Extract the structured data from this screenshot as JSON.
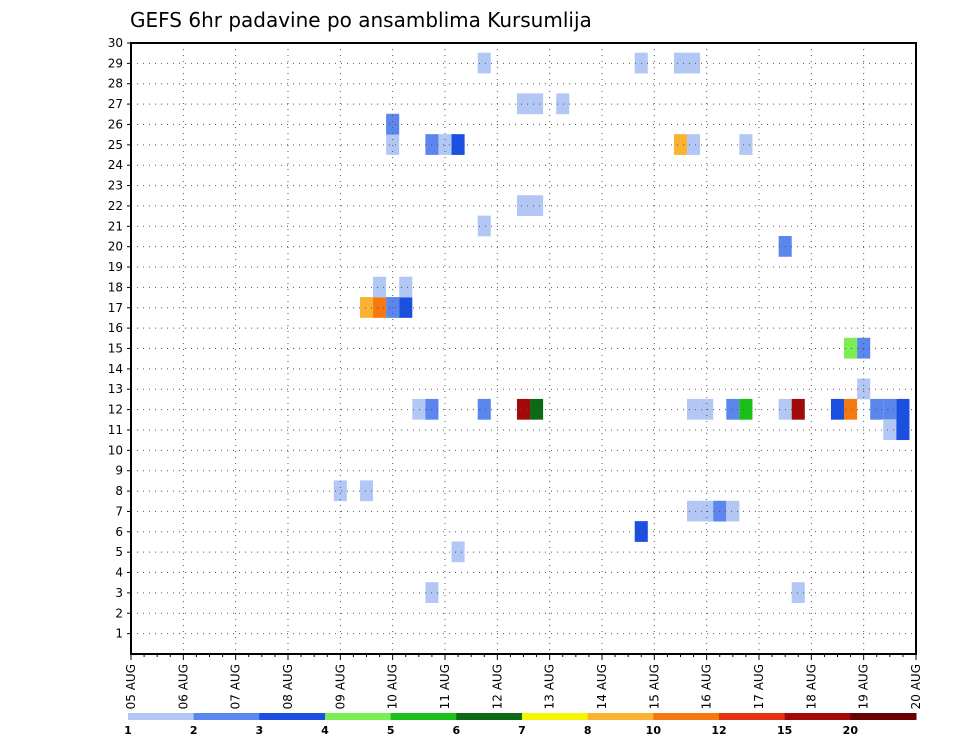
{
  "chart_data": {
    "type": "heatmap",
    "title": "GEFS 6hr padavine po ansamblima Kursumlija",
    "xlabel": "",
    "ylabel": "",
    "x_ticks": [
      "05 AUG",
      "06 AUG",
      "07 AUG",
      "08 AUG",
      "09 AUG",
      "10 AUG",
      "11 AUG",
      "12 AUG",
      "13 AUG",
      "14 AUG",
      "15 AUG",
      "16 AUG",
      "17 AUG",
      "18 AUG",
      "19 AUG",
      "20 AUG"
    ],
    "y_ticks": [
      "1",
      "2",
      "3",
      "4",
      "5",
      "6",
      "7",
      "8",
      "9",
      "10",
      "11",
      "12",
      "13",
      "14",
      "15",
      "16",
      "17",
      "18",
      "19",
      "20",
      "21",
      "22",
      "23",
      "24",
      "25",
      "26",
      "27",
      "28",
      "29",
      "30"
    ],
    "xlim": [
      0,
      15
    ],
    "ylim": [
      0,
      30
    ],
    "grid": true,
    "legend": {
      "position": "bottom",
      "labels": [
        "1",
        "2",
        "3",
        "4",
        "5",
        "6",
        "7",
        "8",
        "10",
        "12",
        "15",
        "20"
      ],
      "colors": [
        "#b3c7f5",
        "#5a86ed",
        "#1a4fe0",
        "#7aee52",
        "#18c018",
        "#0c6a14",
        "#f5f500",
        "#f9b232",
        "#f57810",
        "#e63010",
        "#a20a0a",
        "#6a0000"
      ]
    },
    "cells": [
      {
        "day": 4.0,
        "member": 8,
        "level": 1
      },
      {
        "day": 4.5,
        "member": 8,
        "level": 1
      },
      {
        "day": 4.5,
        "member": 17,
        "level": 8
      },
      {
        "day": 4.75,
        "member": 17,
        "level": 9
      },
      {
        "day": 4.75,
        "member": 18,
        "level": 1
      },
      {
        "day": 5.0,
        "member": 17,
        "level": 2
      },
      {
        "day": 5.25,
        "member": 17,
        "level": 3
      },
      {
        "day": 5.25,
        "member": 18,
        "level": 1
      },
      {
        "day": 5.0,
        "member": 25,
        "level": 1
      },
      {
        "day": 5.0,
        "member": 26,
        "level": 2
      },
      {
        "day": 5.75,
        "member": 3,
        "level": 1
      },
      {
        "day": 5.75,
        "member": 25,
        "level": 2
      },
      {
        "day": 6.0,
        "member": 25,
        "level": 1
      },
      {
        "day": 6.25,
        "member": 25,
        "level": 3
      },
      {
        "day": 6.25,
        "member": 5,
        "level": 1
      },
      {
        "day": 5.5,
        "member": 12,
        "level": 1
      },
      {
        "day": 5.75,
        "member": 12,
        "level": 2
      },
      {
        "day": 6.75,
        "member": 12,
        "level": 2
      },
      {
        "day": 6.75,
        "member": 21,
        "level": 1
      },
      {
        "day": 6.75,
        "member": 29,
        "level": 1
      },
      {
        "day": 7.5,
        "member": 12,
        "level": 11
      },
      {
        "day": 7.75,
        "member": 12,
        "level": 6
      },
      {
        "day": 7.5,
        "member": 22,
        "level": 1
      },
      {
        "day": 7.75,
        "member": 22,
        "level": 1
      },
      {
        "day": 7.5,
        "member": 27,
        "level": 1
      },
      {
        "day": 7.75,
        "member": 27,
        "level": 1
      },
      {
        "day": 8.25,
        "member": 27,
        "level": 1
      },
      {
        "day": 9.75,
        "member": 6,
        "level": 3
      },
      {
        "day": 9.75,
        "member": 29,
        "level": 1
      },
      {
        "day": 10.5,
        "member": 25,
        "level": 8
      },
      {
        "day": 10.75,
        "member": 25,
        "level": 1
      },
      {
        "day": 10.5,
        "member": 29,
        "level": 1
      },
      {
        "day": 10.75,
        "member": 29,
        "level": 1
      },
      {
        "day": 10.75,
        "member": 7,
        "level": 1
      },
      {
        "day": 11.0,
        "member": 7,
        "level": 1
      },
      {
        "day": 11.25,
        "member": 7,
        "level": 2
      },
      {
        "day": 11.5,
        "member": 7,
        "level": 1
      },
      {
        "day": 10.75,
        "member": 12,
        "level": 1
      },
      {
        "day": 11.0,
        "member": 12,
        "level": 1
      },
      {
        "day": 11.5,
        "member": 12,
        "level": 2
      },
      {
        "day": 11.75,
        "member": 12,
        "level": 5
      },
      {
        "day": 11.75,
        "member": 25,
        "level": 1
      },
      {
        "day": 12.5,
        "member": 20,
        "level": 2
      },
      {
        "day": 12.5,
        "member": 12,
        "level": 1
      },
      {
        "day": 12.75,
        "member": 12,
        "level": 11
      },
      {
        "day": 12.75,
        "member": 3,
        "level": 1
      },
      {
        "day": 13.5,
        "member": 12,
        "level": 3
      },
      {
        "day": 13.75,
        "member": 12,
        "level": 9
      },
      {
        "day": 13.75,
        "member": 15,
        "level": 4
      },
      {
        "day": 14.0,
        "member": 15,
        "level": 2
      },
      {
        "day": 14.0,
        "member": 13,
        "level": 1
      },
      {
        "day": 14.25,
        "member": 12,
        "level": 2
      },
      {
        "day": 14.5,
        "member": 12,
        "level": 2
      },
      {
        "day": 14.75,
        "member": 12,
        "level": 3
      },
      {
        "day": 14.5,
        "member": 11,
        "level": 1
      },
      {
        "day": 14.75,
        "member": 11,
        "level": 3
      }
    ]
  }
}
